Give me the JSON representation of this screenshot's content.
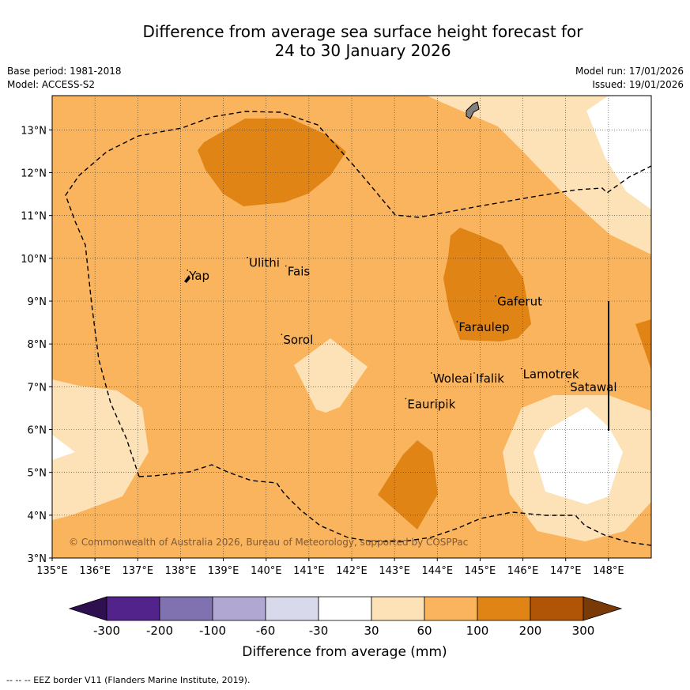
{
  "title_line1": "Difference from average sea surface height forecast for",
  "title_line2": "24 to 30 January 2026",
  "base_period": "Base period: 1981-2018",
  "model": "Model: ACCESS-S2",
  "model_run": "Model run: 17/01/2026",
  "issued": "Issued: 19/01/2026",
  "copyright": "© Commonwealth of Australia 2026, Bureau of Meteorology, supported by COSPPac",
  "footnote": "-- -- -- EEZ border V11 (Flanders Marine Institute, 2019).",
  "map": {
    "lon_range": [
      135,
      149
    ],
    "lat_range": [
      3,
      13.8
    ],
    "lon_ticks": [
      "135°E",
      "136°E",
      "137°E",
      "138°E",
      "139°E",
      "140°E",
      "141°E",
      "142°E",
      "143°E",
      "144°E",
      "145°E",
      "146°E",
      "147°E",
      "148°E"
    ],
    "lat_ticks": [
      "3°N",
      "4°N",
      "5°N",
      "6°N",
      "7°N",
      "8°N",
      "9°N",
      "10°N",
      "11°N",
      "12°N",
      "13°N"
    ],
    "places": [
      {
        "name": "Yap",
        "lon": 138.2,
        "lat": 9.5
      },
      {
        "name": "Ulithi",
        "lon": 139.6,
        "lat": 9.8
      },
      {
        "name": "Fais",
        "lon": 140.5,
        "lat": 9.6
      },
      {
        "name": "Sorol",
        "lon": 140.4,
        "lat": 8.0
      },
      {
        "name": "Gaferut",
        "lon": 145.4,
        "lat": 8.9
      },
      {
        "name": "Faraulep",
        "lon": 144.5,
        "lat": 8.3
      },
      {
        "name": "Woleai",
        "lon": 143.9,
        "lat": 7.1
      },
      {
        "name": "Ifalik",
        "lon": 144.9,
        "lat": 7.1
      },
      {
        "name": "Lamotrek",
        "lon": 146.0,
        "lat": 7.2
      },
      {
        "name": "Satawal",
        "lon": 147.1,
        "lat": 6.9
      },
      {
        "name": "Eauripik",
        "lon": 143.3,
        "lat": 6.5
      }
    ]
  },
  "colorbar": {
    "label": "Difference from average (mm)",
    "ticks": [
      "-300",
      "-200",
      "-100",
      "-60",
      "-30",
      "30",
      "60",
      "100",
      "200",
      "300"
    ],
    "colors": [
      "#2e0f4f",
      "#52238a",
      "#8072b0",
      "#b0a8d3",
      "#d9d9ec",
      "#ffffff",
      "#fde2b7",
      "#f9b45d",
      "#e08415",
      "#b05506",
      "#7a3a08"
    ]
  },
  "fills": {
    "base": "#f9b45d",
    "light": "#fde2b7",
    "dark": "#e08415",
    "white": "#ffffff",
    "land": "#808080"
  }
}
